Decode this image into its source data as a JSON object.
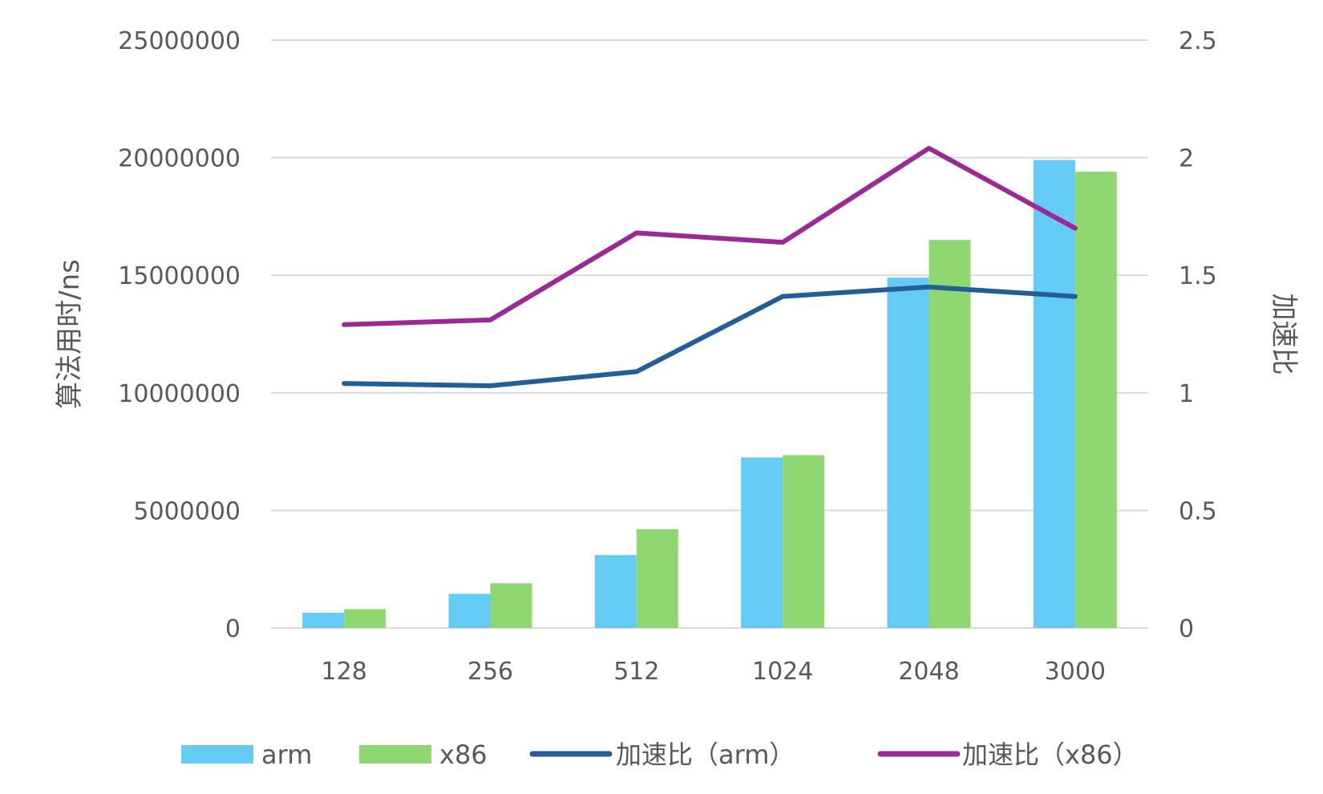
{
  "chart_data": {
    "type": "bar",
    "categories": [
      "128",
      "256",
      "512",
      "1024",
      "2048",
      "3000"
    ],
    "series": [
      {
        "name": "arm",
        "type": "bar",
        "axis": "left",
        "color": "#64cbf4",
        "values": [
          650000,
          1450000,
          3100000,
          7250000,
          14900000,
          19900000
        ]
      },
      {
        "name": "x86",
        "type": "bar",
        "axis": "left",
        "color": "#8fd871",
        "values": [
          800000,
          1900000,
          4200000,
          7350000,
          16500000,
          19400000
        ]
      },
      {
        "name": "加速比（arm）",
        "type": "line",
        "axis": "right",
        "color": "#225e98",
        "values": [
          1.04,
          1.03,
          1.09,
          1.41,
          1.45,
          1.41
        ]
      },
      {
        "name": "加速比（x86）",
        "type": "line",
        "axis": "right",
        "color": "#9b2a95",
        "values": [
          1.29,
          1.31,
          1.68,
          1.64,
          2.04,
          1.7
        ]
      }
    ],
    "ylabel": "算法用时/ns",
    "y2label": "加速比",
    "ylim": [
      0,
      25000000
    ],
    "y2lim": [
      0,
      2.5
    ],
    "yticks": [
      "0",
      "5000000",
      "10000000",
      "15000000",
      "20000000",
      "25000000"
    ],
    "y2ticks": [
      "0",
      "0.5",
      "1",
      "1.5",
      "2",
      "2.5"
    ],
    "grid": true,
    "legend": "bottom"
  }
}
